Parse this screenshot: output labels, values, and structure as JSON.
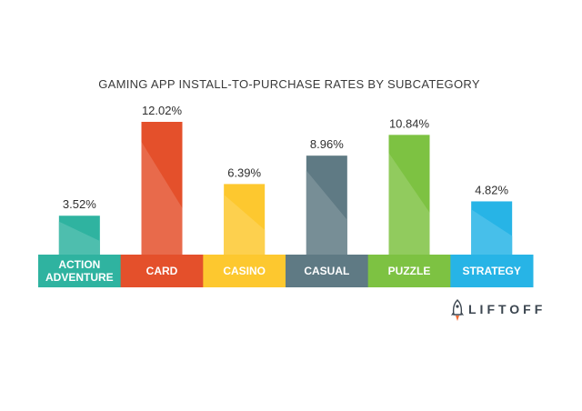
{
  "chart_data": {
    "type": "bar",
    "title": "GAMING APP INSTALL-TO-PURCHASE RATES BY SUBCATEGORY",
    "categories": [
      [
        "ACTION",
        "ADVENTURE"
      ],
      [
        "CARD"
      ],
      [
        "CASINO"
      ],
      [
        "CASUAL"
      ],
      [
        "PUZZLE"
      ],
      [
        "STRATEGY"
      ]
    ],
    "values": [
      3.52,
      12.02,
      6.39,
      8.96,
      10.84,
      4.82
    ],
    "value_labels": [
      "3.52%",
      "12.02%",
      "6.39%",
      "8.96%",
      "10.84%",
      "4.82%"
    ],
    "colors": [
      "#2fb3a0",
      "#e4502b",
      "#fdc82f",
      "#5f7a84",
      "#7dc242",
      "#27b4e6"
    ],
    "ylim": [
      0,
      12.02
    ],
    "grid": false,
    "legend": "none"
  },
  "logo": {
    "text": "LIFTOFF",
    "icon": "rocket-icon"
  }
}
